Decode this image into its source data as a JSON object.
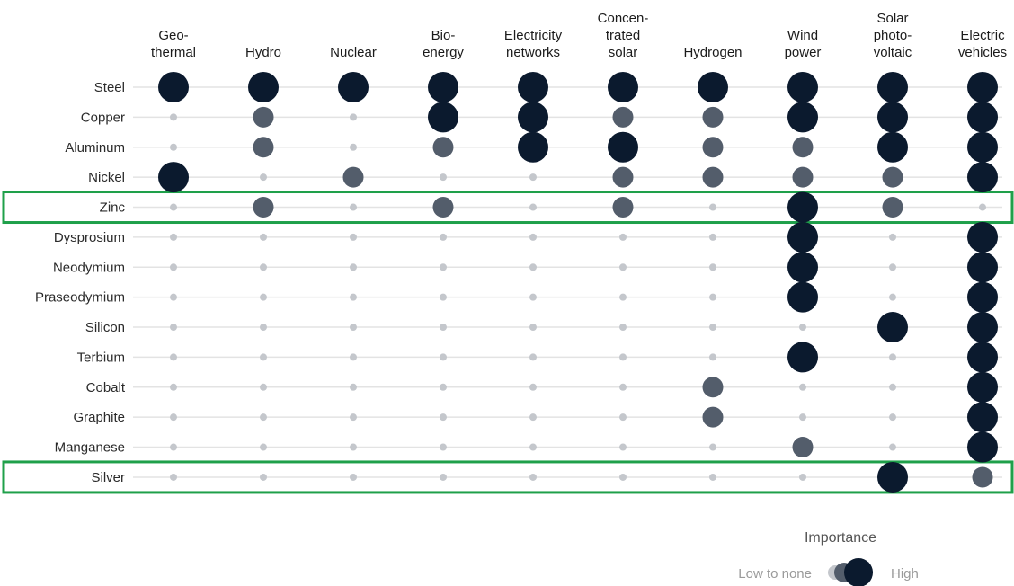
{
  "chart_data": {
    "type": "bubble-matrix",
    "columns": [
      [
        "Geo-",
        "thermal"
      ],
      [
        "Hydro"
      ],
      [
        "Nuclear"
      ],
      [
        "Bio-",
        "energy"
      ],
      [
        "Electricity",
        "networks"
      ],
      [
        "Concen-",
        "trated",
        "solar"
      ],
      [
        "Hydrogen"
      ],
      [
        "Wind",
        "power"
      ],
      [
        "Solar",
        "photo-",
        "voltaic"
      ],
      [
        "Electric",
        "vehicles"
      ]
    ],
    "rows": [
      "Steel",
      "Copper",
      "Aluminum",
      "Nickel",
      "Zinc",
      "Dysprosium",
      "Neodymium",
      "Praseodymium",
      "Silicon",
      "Terbium",
      "Cobalt",
      "Graphite",
      "Manganese",
      "Silver"
    ],
    "importance_levels": {
      "0": "low to none",
      "1": "moderate",
      "2": "high"
    },
    "values": [
      [
        2,
        2,
        2,
        2,
        2,
        2,
        2,
        2,
        2,
        2
      ],
      [
        0,
        1,
        0,
        2,
        2,
        1,
        1,
        2,
        2,
        2
      ],
      [
        0,
        1,
        0,
        1,
        2,
        2,
        1,
        1,
        2,
        2
      ],
      [
        2,
        0,
        1,
        0,
        0,
        1,
        1,
        1,
        1,
        2
      ],
      [
        0,
        1,
        0,
        1,
        0,
        1,
        0,
        2,
        1,
        0
      ],
      [
        0,
        0,
        0,
        0,
        0,
        0,
        0,
        2,
        0,
        2
      ],
      [
        0,
        0,
        0,
        0,
        0,
        0,
        0,
        2,
        0,
        2
      ],
      [
        0,
        0,
        0,
        0,
        0,
        0,
        0,
        2,
        0,
        2
      ],
      [
        0,
        0,
        0,
        0,
        0,
        0,
        0,
        0,
        2,
        2
      ],
      [
        0,
        0,
        0,
        0,
        0,
        0,
        0,
        2,
        0,
        2
      ],
      [
        0,
        0,
        0,
        0,
        0,
        0,
        1,
        0,
        0,
        2
      ],
      [
        0,
        0,
        0,
        0,
        0,
        0,
        1,
        0,
        0,
        2
      ],
      [
        0,
        0,
        0,
        0,
        0,
        0,
        0,
        1,
        0,
        2
      ],
      [
        0,
        0,
        0,
        0,
        0,
        0,
        0,
        0,
        2,
        1
      ]
    ],
    "highlighted_rows": [
      "Zinc",
      "Silver"
    ],
    "colors": {
      "high": "#0b1a2e",
      "moderate": "#535d6b",
      "low": "#c4c7cc",
      "gridline": "#e3e3e3",
      "highlight_box": "#1fa04a"
    },
    "legend": {
      "title": "Importance",
      "low_label": "Low to none",
      "high_label": "High"
    }
  }
}
